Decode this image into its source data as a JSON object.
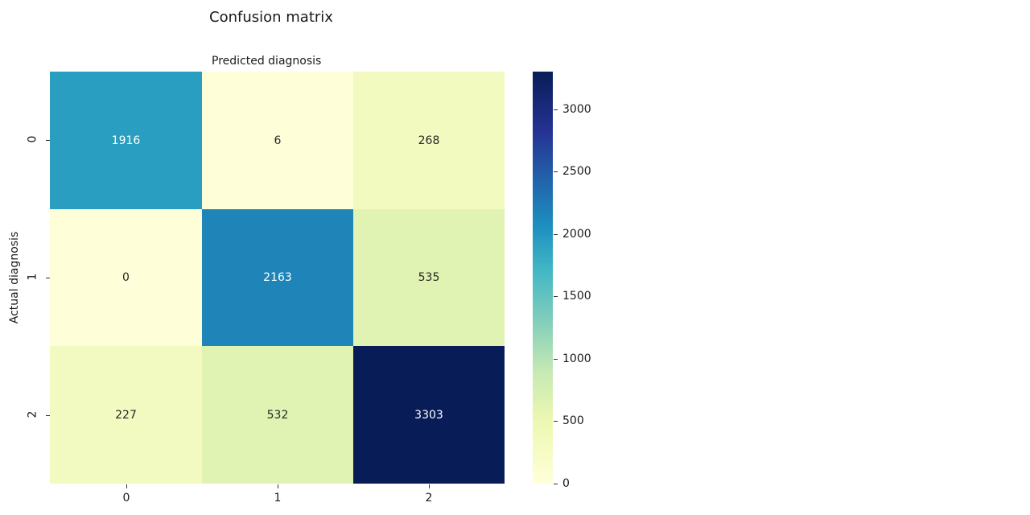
{
  "chart_data": {
    "type": "heatmap",
    "title": "Confusion matrix",
    "xlabel": "Predicted diagnosis",
    "ylabel": "Actual diagnosis",
    "x_categories": [
      "0",
      "1",
      "2"
    ],
    "y_categories": [
      "0",
      "1",
      "2"
    ],
    "values": [
      [
        1916,
        6,
        268
      ],
      [
        0,
        2163,
        535
      ],
      [
        227,
        532,
        3303
      ]
    ],
    "colormap": "YlGnBu",
    "colorbar": {
      "min": 0,
      "max": 3303,
      "ticks": [
        "0",
        "500",
        "1000",
        "1500",
        "2000",
        "2500",
        "3000"
      ]
    },
    "cell_colors": [
      [
        "#2a9ec1",
        "#feffd9",
        "#f2fac0"
      ],
      [
        "#feffd9",
        "#1f85b8",
        "#e1f3b3"
      ],
      [
        "#f3fac1",
        "#e1f3b3",
        "#081d58"
      ]
    ],
    "text_colors": [
      [
        "#ffffff",
        "#262626",
        "#262626"
      ],
      [
        "#262626",
        "#ffffff",
        "#262626"
      ],
      [
        "#262626",
        "#262626",
        "#ffffff"
      ]
    ],
    "annotations": [
      [
        "1916",
        "6",
        "268"
      ],
      [
        "0",
        "2163",
        "535"
      ],
      [
        "227",
        "532",
        "3303"
      ]
    ]
  }
}
